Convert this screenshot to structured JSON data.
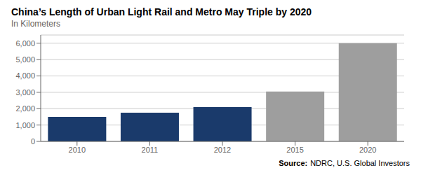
{
  "chart_data": {
    "type": "bar",
    "title": "China’s Length of Urban Light Rail and Metro May Triple by 2020",
    "subtitle": "In Kilometers",
    "categories": [
      "2010",
      "2011",
      "2012",
      "2015",
      "2020"
    ],
    "values": [
      1500,
      1750,
      2100,
      3050,
      6000
    ],
    "colors": [
      "#1a3a6b",
      "#1a3a6b",
      "#1a3a6b",
      "#9e9e9e",
      "#9e9e9e"
    ],
    "ylim": [
      0,
      6500
    ],
    "yticks": [
      0,
      {
        "value": 1000,
        "label": "1,000"
      },
      {
        "value": 2000,
        "label": "2,000"
      },
      {
        "value": 3000,
        "label": "3,000"
      },
      {
        "value": 4000,
        "label": "4,000"
      },
      {
        "value": 5000,
        "label": "5,000"
      },
      {
        "value": 6000,
        "label": "6,000"
      }
    ],
    "grid": true,
    "annotations": [
      "Source:",
      "NDRC, U.S. Global Investors"
    ]
  }
}
